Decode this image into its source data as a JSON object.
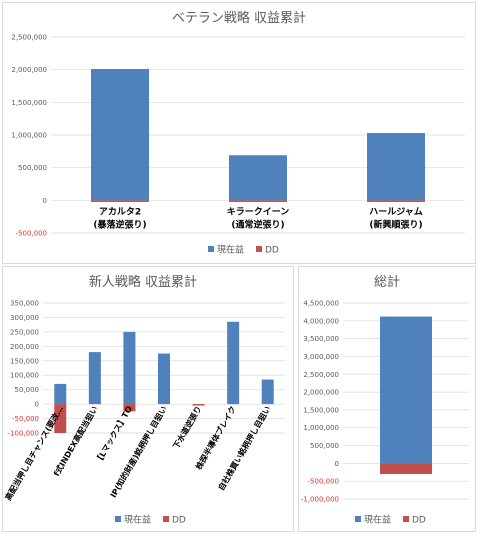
{
  "colors": {
    "profit": "#4f81bd",
    "dd": "#c0504d",
    "negative_tick": "#e03030"
  },
  "chart_data": [
    {
      "id": "veteran",
      "type": "bar",
      "title": "ベテラン戦略 収益累計",
      "categories": [
        [
          "アカルタ2",
          "(暴落逆張り)"
        ],
        [
          "キラークイーン",
          "(通常逆張り)"
        ],
        [
          "ハールジャム",
          "(新興順張り)"
        ]
      ],
      "series": [
        {
          "name": "現在益",
          "values": [
            2010000,
            690000,
            1030000
          ]
        },
        {
          "name": "DD",
          "values": [
            -25000,
            -25000,
            -25000
          ]
        }
      ],
      "ylim": [
        -500000,
        2500000
      ],
      "yticks": [
        "-500,000",
        "0",
        "500,000",
        "1,000,000",
        "1,500,000",
        "2,000,000",
        "2,500,000"
      ],
      "stacked": true,
      "legend": "bottom"
    },
    {
      "id": "newcomer",
      "type": "bar",
      "title": "新人戦略 収益累計",
      "categories": [
        "高配当押し目チャンス(要改…",
        "f式INDEX高配当狙い",
        "【Lマックス】TO",
        "IP(知的財産)銘柄押し目狙い",
        "下水道逆張り",
        "株探半導体ブレイク",
        "自社株買い銘柄押し目狙い"
      ],
      "series": [
        {
          "name": "現在益",
          "values": [
            70000,
            180000,
            250000,
            175000,
            0,
            285000,
            85000
          ]
        },
        {
          "name": "DD",
          "values": [
            -100000,
            0,
            -25000,
            0,
            -5000,
            0,
            0
          ]
        }
      ],
      "ylim": [
        -100000,
        350000
      ],
      "yticks": [
        "-100,000",
        "-50,000",
        "0",
        "50,000",
        "100,000",
        "150,000",
        "200,000",
        "250,000",
        "300,000",
        "350,000"
      ],
      "stacked": true,
      "legend": "bottom"
    },
    {
      "id": "total",
      "type": "bar",
      "title": "総計",
      "categories": [
        ""
      ],
      "series": [
        {
          "name": "現在益",
          "values": [
            4120000
          ]
        },
        {
          "name": "DD",
          "values": [
            -300000
          ]
        }
      ],
      "ylim": [
        -1000000,
        4500000
      ],
      "yticks": [
        "-1,000,000",
        "-500,000",
        "0",
        "500,000",
        "1,000,000",
        "1,500,000",
        "2,000,000",
        "2,500,000",
        "3,000,000",
        "3,500,000",
        "4,000,000",
        "4,500,000"
      ],
      "stacked": true,
      "legend": "bottom"
    }
  ]
}
